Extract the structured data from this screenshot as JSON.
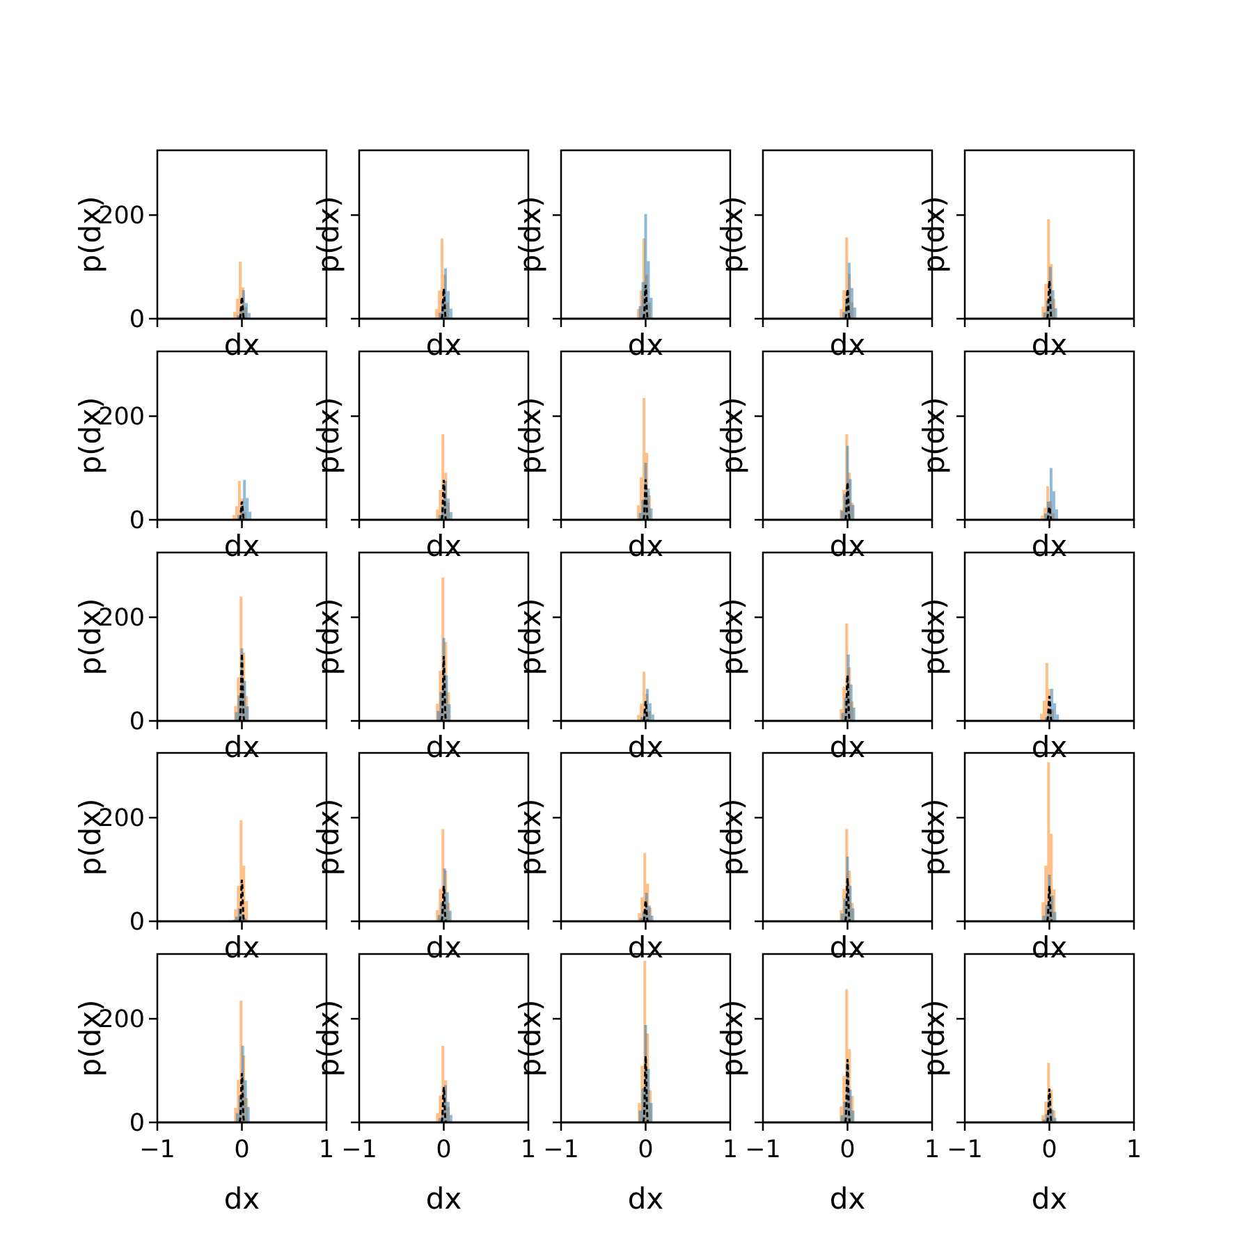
{
  "figure": {
    "rows": 5,
    "cols": 5,
    "shared_axes": true
  },
  "colors": {
    "series_blue": "#1f77b4",
    "series_orange": "#ff7f0e",
    "series_black": "#000000",
    "axes": "#000000"
  },
  "chart_data": {
    "type": "bar",
    "subtype": "histogram-grid",
    "xlabel": "dx",
    "ylabel": "p(dx)",
    "xlim": [
      -1,
      1
    ],
    "ylim": [
      0,
      325
    ],
    "xticks": [
      -1,
      0,
      1
    ],
    "xtick_labels": [
      "−1",
      "0",
      "1"
    ],
    "yticks": [
      0,
      200
    ],
    "ytick_labels": [
      "0",
      "200"
    ],
    "grid": false,
    "legend": "none",
    "panels": [
      {
        "row": 0,
        "col": 0,
        "blue_peak": {
          "x": 0.02,
          "y": 55
        },
        "orange_peak": {
          "x": -0.02,
          "y": 110
        },
        "black_peak": {
          "x": 0.0,
          "y": 42
        }
      },
      {
        "row": 0,
        "col": 1,
        "blue_peak": {
          "x": 0.02,
          "y": 97
        },
        "orange_peak": {
          "x": -0.02,
          "y": 155
        },
        "black_peak": {
          "x": 0.0,
          "y": 58
        }
      },
      {
        "row": 0,
        "col": 2,
        "blue_peak": {
          "x": 0.0,
          "y": 202
        },
        "orange_peak": {
          "x": -0.02,
          "y": 155
        },
        "black_peak": {
          "x": 0.0,
          "y": 65
        }
      },
      {
        "row": 0,
        "col": 3,
        "blue_peak": {
          "x": 0.02,
          "y": 108
        },
        "orange_peak": {
          "x": -0.01,
          "y": 157
        },
        "black_peak": {
          "x": 0.0,
          "y": 57
        }
      },
      {
        "row": 0,
        "col": 4,
        "blue_peak": {
          "x": 0.01,
          "y": 100
        },
        "orange_peak": {
          "x": -0.01,
          "y": 192
        },
        "black_peak": {
          "x": 0.0,
          "y": 73
        }
      },
      {
        "row": 1,
        "col": 0,
        "blue_peak": {
          "x": 0.03,
          "y": 77
        },
        "orange_peak": {
          "x": -0.03,
          "y": 75
        },
        "black_peak": {
          "x": 0.0,
          "y": 35
        }
      },
      {
        "row": 1,
        "col": 1,
        "blue_peak": {
          "x": 0.02,
          "y": 75
        },
        "orange_peak": {
          "x": -0.01,
          "y": 165
        },
        "black_peak": {
          "x": 0.0,
          "y": 77
        }
      },
      {
        "row": 1,
        "col": 2,
        "blue_peak": {
          "x": 0.0,
          "y": 110
        },
        "orange_peak": {
          "x": -0.02,
          "y": 235
        },
        "black_peak": {
          "x": 0.0,
          "y": 78
        }
      },
      {
        "row": 1,
        "col": 3,
        "blue_peak": {
          "x": 0.0,
          "y": 143
        },
        "orange_peak": {
          "x": -0.01,
          "y": 165
        },
        "black_peak": {
          "x": 0.0,
          "y": 72
        }
      },
      {
        "row": 1,
        "col": 4,
        "blue_peak": {
          "x": 0.02,
          "y": 100
        },
        "orange_peak": {
          "x": -0.02,
          "y": 65
        },
        "black_peak": {
          "x": 0.0,
          "y": 25
        }
      },
      {
        "row": 2,
        "col": 0,
        "blue_peak": {
          "x": 0.0,
          "y": 140
        },
        "orange_peak": {
          "x": -0.01,
          "y": 240
        },
        "black_peak": {
          "x": 0.0,
          "y": 130
        }
      },
      {
        "row": 2,
        "col": 1,
        "blue_peak": {
          "x": 0.0,
          "y": 160
        },
        "orange_peak": {
          "x": -0.01,
          "y": 277
        },
        "black_peak": {
          "x": 0.0,
          "y": 125
        }
      },
      {
        "row": 2,
        "col": 2,
        "blue_peak": {
          "x": 0.02,
          "y": 62
        },
        "orange_peak": {
          "x": -0.02,
          "y": 95
        },
        "black_peak": {
          "x": 0.0,
          "y": 38
        }
      },
      {
        "row": 2,
        "col": 3,
        "blue_peak": {
          "x": 0.01,
          "y": 128
        },
        "orange_peak": {
          "x": -0.01,
          "y": 188
        },
        "black_peak": {
          "x": 0.0,
          "y": 88
        }
      },
      {
        "row": 2,
        "col": 4,
        "blue_peak": {
          "x": 0.03,
          "y": 62
        },
        "orange_peak": {
          "x": -0.03,
          "y": 112
        },
        "black_peak": {
          "x": 0.0,
          "y": 48
        }
      },
      {
        "row": 3,
        "col": 0,
        "blue_peak": {
          "x": -0.03,
          "y": 25
        },
        "orange_peak": {
          "x": -0.01,
          "y": 195
        },
        "black_peak": {
          "x": 0.0,
          "y": 80
        }
      },
      {
        "row": 3,
        "col": 1,
        "blue_peak": {
          "x": 0.01,
          "y": 102
        },
        "orange_peak": {
          "x": -0.01,
          "y": 178
        },
        "black_peak": {
          "x": 0.0,
          "y": 68
        }
      },
      {
        "row": 3,
        "col": 2,
        "blue_peak": {
          "x": 0.01,
          "y": 55
        },
        "orange_peak": {
          "x": -0.01,
          "y": 132
        },
        "black_peak": {
          "x": 0.0,
          "y": 40
        }
      },
      {
        "row": 3,
        "col": 3,
        "blue_peak": {
          "x": 0.0,
          "y": 125
        },
        "orange_peak": {
          "x": -0.01,
          "y": 178
        },
        "black_peak": {
          "x": 0.0,
          "y": 83
        }
      },
      {
        "row": 3,
        "col": 4,
        "blue_peak": {
          "x": 0.0,
          "y": 90
        },
        "orange_peak": {
          "x": -0.01,
          "y": 307
        },
        "black_peak": {
          "x": 0.0,
          "y": 68
        }
      },
      {
        "row": 4,
        "col": 0,
        "blue_peak": {
          "x": 0.01,
          "y": 148
        },
        "orange_peak": {
          "x": -0.01,
          "y": 235
        },
        "black_peak": {
          "x": 0.0,
          "y": 95
        }
      },
      {
        "row": 4,
        "col": 1,
        "blue_peak": {
          "x": 0.02,
          "y": 72
        },
        "orange_peak": {
          "x": -0.01,
          "y": 148
        },
        "black_peak": {
          "x": 0.0,
          "y": 68
        }
      },
      {
        "row": 4,
        "col": 2,
        "blue_peak": {
          "x": 0.0,
          "y": 188
        },
        "orange_peak": {
          "x": -0.01,
          "y": 312
        },
        "black_peak": {
          "x": 0.0,
          "y": 128
        }
      },
      {
        "row": 4,
        "col": 3,
        "blue_peak": {
          "x": 0.0,
          "y": 115
        },
        "orange_peak": {
          "x": -0.01,
          "y": 257
        },
        "black_peak": {
          "x": 0.0,
          "y": 122
        }
      },
      {
        "row": 4,
        "col": 4,
        "blue_peak": {
          "x": 0.0,
          "y": 45
        },
        "orange_peak": {
          "x": -0.01,
          "y": 115
        },
        "black_peak": {
          "x": 0.0,
          "y": 65
        }
      }
    ]
  }
}
